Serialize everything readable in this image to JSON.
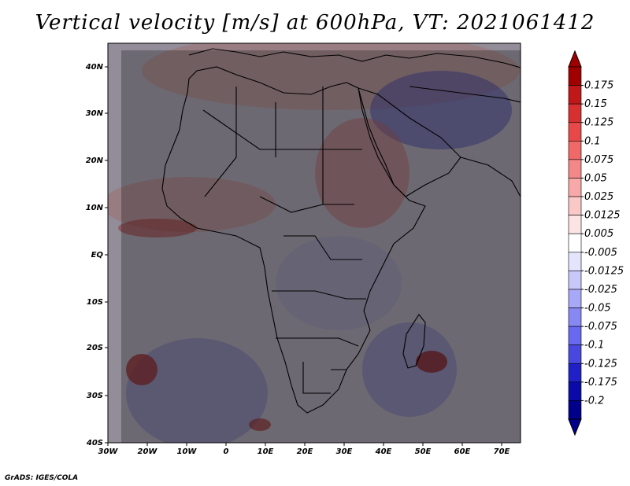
{
  "title": "Vertical velocity [m/s] at 600hPa, VT: 2021061412",
  "x_ticks": [
    "30W",
    "20W",
    "10W",
    "0",
    "10E",
    "20E",
    "30E",
    "40E",
    "50E",
    "60E",
    "70E"
  ],
  "y_ticks": [
    "40N",
    "30N",
    "20N",
    "10N",
    "EQ",
    "10S",
    "20S",
    "30S",
    "40S"
  ],
  "colorbar": {
    "labels": [
      "0.175",
      "0.15",
      "0.125",
      "0.1",
      "0.075",
      "0.05",
      "0.025",
      "0.0125",
      "0.005",
      "-0.005",
      "-0.0125",
      "-0.025",
      "-0.05",
      "-0.075",
      "-0.1",
      "-0.125",
      "-0.175",
      "-0.2"
    ],
    "colors": [
      "#a00000",
      "#c01818",
      "#d83030",
      "#e84848",
      "#f06868",
      "#f48888",
      "#f8a8a8",
      "#fbc8c8",
      "#fde4e4",
      "#ffffff",
      "#e4e4fd",
      "#c8c8fb",
      "#a8a8f8",
      "#8888f4",
      "#6868f0",
      "#4848e0",
      "#2020c8",
      "#0a0aa8",
      "#00008a"
    ]
  },
  "credit": "GrADS: IGES/COLA",
  "palette": {
    "positive": "#d83030",
    "negative": "#4848e0",
    "land_border": "#000000"
  }
}
